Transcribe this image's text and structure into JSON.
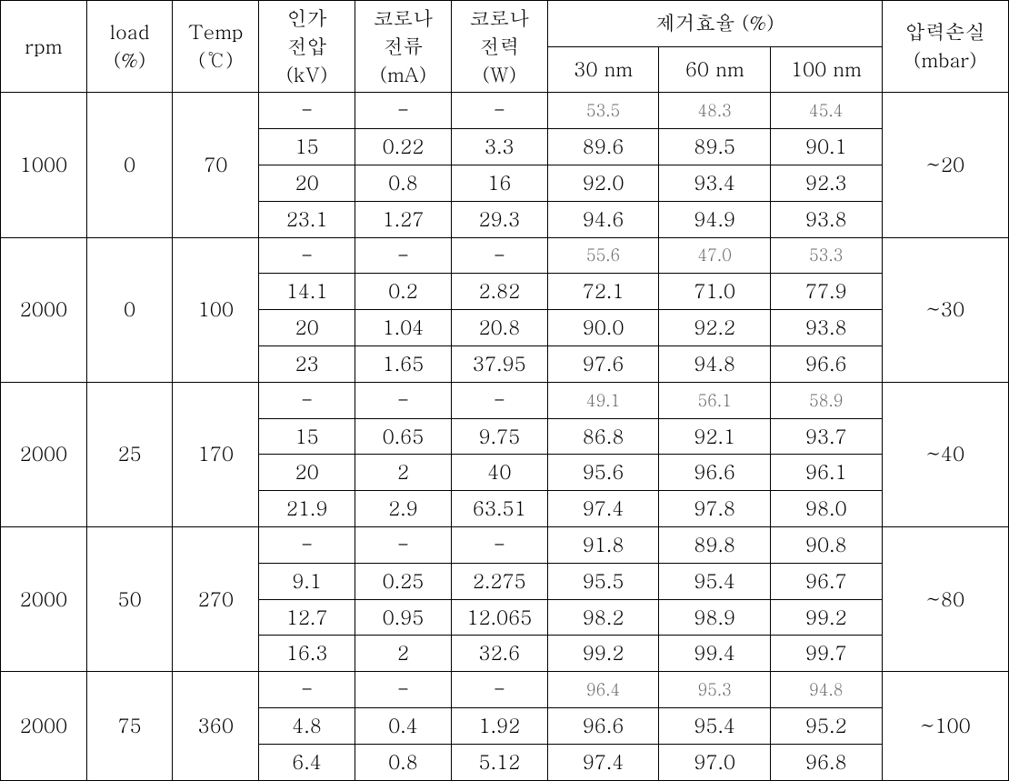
{
  "headers": {
    "rpm": "rpm",
    "load": "load\n(%)",
    "temp": "Temp\n(℃)",
    "kv": "인가\n전압\n(kV)",
    "ma": "코로나\n전류\n(mA)",
    "w": "코로나\n전력\n(W)",
    "eff_group": "제거효율 (%)",
    "nm30": "30 nm",
    "nm60": "60 nm",
    "nm100": "100 nm",
    "mbar": "압력손실\n(mbar)"
  },
  "groups": [
    {
      "rpm": "1000",
      "load": "0",
      "temp": "70",
      "mbar": "~20",
      "rows": [
        {
          "kv": "-",
          "ma": "-",
          "w": "-",
          "n30": "53.5",
          "n60": "48.3",
          "n100": "45.4",
          "grey": true
        },
        {
          "kv": "15",
          "ma": "0.22",
          "w": "3.3",
          "n30": "89.6",
          "n60": "89.5",
          "n100": "90.1"
        },
        {
          "kv": "20",
          "ma": "0.8",
          "w": "16",
          "n30": "92.0",
          "n60": "93.4",
          "n100": "92.3"
        },
        {
          "kv": "23.1",
          "ma": "1.27",
          "w": "29.3",
          "n30": "94.6",
          "n60": "94.9",
          "n100": "93.8"
        }
      ]
    },
    {
      "rpm": "2000",
      "load": "0",
      "temp": "100",
      "mbar": "~30",
      "rows": [
        {
          "kv": "-",
          "ma": "-",
          "w": "-",
          "n30": "55.6",
          "n60": "47.0",
          "n100": "53.3",
          "grey": true
        },
        {
          "kv": "14.1",
          "ma": "0.2",
          "w": "2.82",
          "n30": "72.1",
          "n60": "71.0",
          "n100": "77.9"
        },
        {
          "kv": "20",
          "ma": "1.04",
          "w": "20.8",
          "n30": "90.0",
          "n60": "92.2",
          "n100": "93.8"
        },
        {
          "kv": "23",
          "ma": "1.65",
          "w": "37.95",
          "n30": "97.6",
          "n60": "94.8",
          "n100": "96.6"
        }
      ]
    },
    {
      "rpm": "2000",
      "load": "25",
      "temp": "170",
      "mbar": "~40",
      "rows": [
        {
          "kv": "-",
          "ma": "-",
          "w": "-",
          "n30": "49.1",
          "n60": "56.1",
          "n100": "58.9",
          "grey": true
        },
        {
          "kv": "15",
          "ma": "0.65",
          "w": "9.75",
          "n30": "86.8",
          "n60": "92.1",
          "n100": "93.7"
        },
        {
          "kv": "20",
          "ma": "2",
          "w": "40",
          "n30": "95.6",
          "n60": "96.6",
          "n100": "96.1"
        },
        {
          "kv": "21.9",
          "ma": "2.9",
          "w": "63.51",
          "n30": "97.4",
          "n60": "97.8",
          "n100": "98.0"
        }
      ]
    },
    {
      "rpm": "2000",
      "load": "50",
      "temp": "270",
      "mbar": "~80",
      "rows": [
        {
          "kv": "-",
          "ma": "-",
          "w": "-",
          "n30": "91.8",
          "n60": "89.8",
          "n100": "90.8"
        },
        {
          "kv": "9.1",
          "ma": "0.25",
          "w": "2.275",
          "n30": "95.5",
          "n60": "95.4",
          "n100": "96.7"
        },
        {
          "kv": "12.7",
          "ma": "0.95",
          "w": "12.065",
          "n30": "98.2",
          "n60": "98.9",
          "n100": "99.2"
        },
        {
          "kv": "16.3",
          "ma": "2",
          "w": "32.6",
          "n30": "99.2",
          "n60": "99.4",
          "n100": "99.7"
        }
      ]
    },
    {
      "rpm": "2000",
      "load": "75",
      "temp": "360",
      "mbar": "~100",
      "rows": [
        {
          "kv": "-",
          "ma": "-",
          "w": "-",
          "n30": "96.4",
          "n60": "95.3",
          "n100": "94.8",
          "grey": true
        },
        {
          "kv": "4.8",
          "ma": "0.4",
          "w": "1.92",
          "n30": "96.6",
          "n60": "95.4",
          "n100": "95.2"
        },
        {
          "kv": "6.4",
          "ma": "0.8",
          "w": "5.12",
          "n30": "97.4",
          "n60": "97.0",
          "n100": "96.8"
        }
      ]
    }
  ]
}
